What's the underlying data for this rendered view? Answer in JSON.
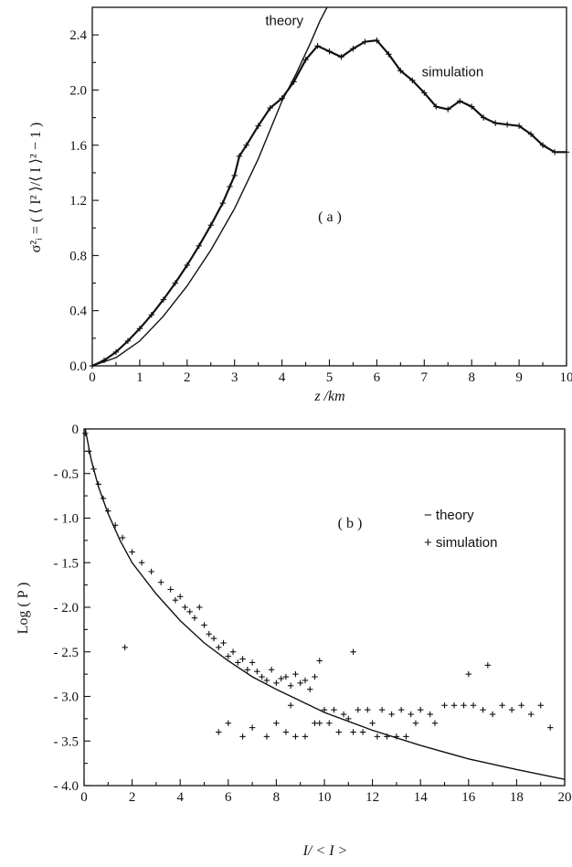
{
  "chart_data": [
    {
      "type": "line",
      "panel_label": "( a )",
      "xlabel": "z /km",
      "ylabel": "σ²ᵢ = ( ⟨ I² ⟩/⟨ I ⟩² − 1 )",
      "xlim": [
        0,
        10
      ],
      "ylim": [
        0,
        2.6
      ],
      "xticks": [
        0,
        1,
        2,
        3,
        4,
        5,
        6,
        7,
        8,
        9,
        10
      ],
      "xtick_labels": [
        "0",
        "1",
        "2",
        "3",
        "4",
        "5",
        "6",
        "7",
        "8",
        "9",
        "10"
      ],
      "yticks": [
        0.0,
        0.4,
        0.8,
        1.2,
        1.6,
        2.0,
        2.4
      ],
      "ytick_labels": [
        "0.0",
        "0.4",
        "0.8",
        "1.2",
        "1.6",
        "2.0",
        "2.4"
      ],
      "grid": false,
      "annotations": [
        {
          "text": "theory",
          "x": 4.05,
          "y": 2.47
        },
        {
          "text": "simulation",
          "x": 7.6,
          "y": 2.1
        }
      ],
      "series": [
        {
          "name": "theory",
          "style": "thin-line",
          "x": [
            0,
            0.5,
            1,
            1.5,
            2,
            2.5,
            3,
            3.5,
            4,
            4.3,
            4.6,
            4.8,
            4.95
          ],
          "y": [
            0,
            0.06,
            0.18,
            0.36,
            0.58,
            0.84,
            1.14,
            1.5,
            1.92,
            2.12,
            2.34,
            2.5,
            2.6
          ]
        },
        {
          "name": "simulation",
          "style": "thick-line-with-crosses",
          "x": [
            0,
            0.25,
            0.5,
            0.75,
            1,
            1.25,
            1.5,
            1.75,
            2,
            2.25,
            2.5,
            2.75,
            2.9,
            3,
            3.1,
            3.25,
            3.5,
            3.75,
            4,
            4.25,
            4.5,
            4.75,
            5,
            5.25,
            5.5,
            5.75,
            6,
            6.25,
            6.5,
            6.75,
            7,
            7.25,
            7.5,
            7.75,
            8,
            8.25,
            8.5,
            8.75,
            9,
            9.25,
            9.5,
            9.75,
            10
          ],
          "y": [
            0,
            0.04,
            0.1,
            0.18,
            0.27,
            0.37,
            0.48,
            0.6,
            0.73,
            0.87,
            1.02,
            1.18,
            1.3,
            1.38,
            1.52,
            1.6,
            1.74,
            1.87,
            1.94,
            2.06,
            2.22,
            2.32,
            2.28,
            2.24,
            2.3,
            2.35,
            2.36,
            2.26,
            2.14,
            2.07,
            1.98,
            1.88,
            1.86,
            1.92,
            1.88,
            1.8,
            1.76,
            1.75,
            1.74,
            1.68,
            1.6,
            1.55,
            1.55
          ]
        }
      ]
    },
    {
      "type": "line",
      "panel_label": "( b )",
      "xlabel": "I/ < I >",
      "ylabel": "Log ( P )",
      "xlim": [
        0,
        20
      ],
      "ylim": [
        -4,
        0
      ],
      "xticks": [
        0,
        2,
        4,
        6,
        8,
        10,
        12,
        14,
        16,
        18,
        20
      ],
      "xtick_labels": [
        "0",
        "2",
        "4",
        "6",
        "8",
        "10",
        "12",
        "14",
        "16",
        "18",
        "20"
      ],
      "yticks": [
        0,
        -0.5,
        -1.0,
        -1.5,
        -2.0,
        -2.5,
        -3.0,
        -3.5,
        -4.0
      ],
      "ytick_labels": [
        "0",
        "- 0.5",
        "- 1.0",
        "- 1.5",
        "- 2.0",
        "- 2.5",
        "- 3.0",
        "- 3.5",
        "- 4.0"
      ],
      "grid": false,
      "legend": {
        "position": "top-right",
        "entries": [
          "− theory",
          "+ simulation"
        ]
      },
      "series": [
        {
          "name": "theory",
          "style": "thin-line",
          "x": [
            0.05,
            0.3,
            0.6,
            1,
            1.5,
            2,
            3,
            4,
            5,
            6,
            7,
            8,
            10,
            12,
            14,
            16,
            18,
            20
          ],
          "y": [
            0,
            -0.35,
            -0.65,
            -0.95,
            -1.25,
            -1.5,
            -1.85,
            -2.15,
            -2.4,
            -2.6,
            -2.78,
            -2.92,
            -3.18,
            -3.38,
            -3.55,
            -3.7,
            -3.82,
            -3.93
          ]
        },
        {
          "name": "simulation",
          "style": "crosses",
          "x": [
            0.05,
            0.2,
            0.4,
            0.6,
            0.8,
            1,
            1.3,
            1.6,
            2,
            2.4,
            2.8,
            3.2,
            3.6,
            3.8,
            4,
            4.2,
            4.4,
            4.6,
            4.8,
            5,
            5.2,
            5.4,
            5.6,
            5.8,
            6,
            6.2,
            6.4,
            6.6,
            6.8,
            7,
            7.2,
            7.4,
            7.6,
            7.8,
            8,
            8.2,
            8.4,
            8.6,
            8.8,
            9,
            9.2,
            9.4,
            9.6,
            9.8,
            10,
            10.4,
            10.8,
            11,
            11.4,
            11.8,
            12,
            12.4,
            12.8,
            13.2,
            13.6,
            14,
            14.4,
            15,
            15.4,
            15.8,
            16.2,
            16.6,
            17,
            17.4,
            17.8,
            18.2,
            18.6,
            19,
            19.4,
            6.0,
            7.0,
            8.0,
            8.4,
            9.2,
            10.2,
            11.2,
            12.6,
            13.8,
            5.6,
            6.6,
            7.6,
            9.8,
            11.6,
            13.0,
            14.6,
            8.8,
            9.6,
            10.6,
            12.2,
            13.4,
            1.7,
            8.6,
            11.2,
            16.0,
            16.8
          ],
          "y": [
            -0.05,
            -0.25,
            -0.45,
            -0.62,
            -0.78,
            -0.92,
            -1.08,
            -1.22,
            -1.38,
            -1.5,
            -1.6,
            -1.72,
            -1.8,
            -1.92,
            -1.88,
            -2.0,
            -2.05,
            -2.12,
            -2.0,
            -2.2,
            -2.3,
            -2.35,
            -2.45,
            -2.4,
            -2.55,
            -2.5,
            -2.62,
            -2.58,
            -2.7,
            -2.62,
            -2.72,
            -2.78,
            -2.82,
            -2.7,
            -2.85,
            -2.8,
            -2.78,
            -2.88,
            -2.75,
            -2.85,
            -2.82,
            -2.92,
            -2.78,
            -2.6,
            -3.15,
            -3.15,
            -3.2,
            -3.25,
            -3.15,
            -3.15,
            -3.3,
            -3.15,
            -3.2,
            -3.15,
            -3.2,
            -3.15,
            -3.2,
            -3.1,
            -3.1,
            -3.1,
            -3.1,
            -3.15,
            -3.2,
            -3.1,
            -3.15,
            -3.1,
            -3.2,
            -3.1,
            -3.35,
            -3.3,
            -3.35,
            -3.3,
            -3.4,
            -3.45,
            -3.3,
            -3.4,
            -3.45,
            -3.3,
            -3.4,
            -3.45,
            -3.45,
            -3.3,
            -3.4,
            -3.45,
            -3.3,
            -3.45,
            -3.3,
            -3.4,
            -3.45,
            -3.45,
            -2.45,
            -3.1,
            -2.5,
            -2.75,
            -2.65
          ]
        }
      ]
    }
  ]
}
